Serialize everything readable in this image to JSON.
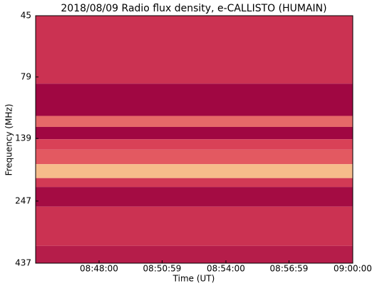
{
  "chart_data": {
    "type": "spectrogram",
    "title": "2018/08/09  Radio flux density, e-CALLISTO (HUMAIN)",
    "x_label": "Time (UT)",
    "y_label": "Frequency (MHz)",
    "xlim": [
      31500,
      32400
    ],
    "xticks": [
      {
        "value": 31680,
        "label": "08:48:00"
      },
      {
        "value": 31859,
        "label": "08:50:59"
      },
      {
        "value": 32040,
        "label": "08:54:00"
      },
      {
        "value": 32219,
        "label": "08:56:59"
      },
      {
        "value": 32400,
        "label": "09:00:00"
      }
    ],
    "ylim": [
      437,
      45
    ],
    "y_log": true,
    "yticks": [
      45,
      79,
      139,
      247,
      437
    ],
    "frequency_edges": [
      45,
      84,
      113,
      125,
      140,
      154,
      176,
      200,
      217,
      260,
      373,
      437
    ],
    "intensity": [
      0.35,
      0.05,
      0.6,
      0.05,
      0.45,
      0.55,
      0.85,
      0.4,
      0.08,
      0.35,
      0.2
    ],
    "colormap": [
      "#99003f",
      "#e0485a",
      "#ffeea0"
    ]
  }
}
